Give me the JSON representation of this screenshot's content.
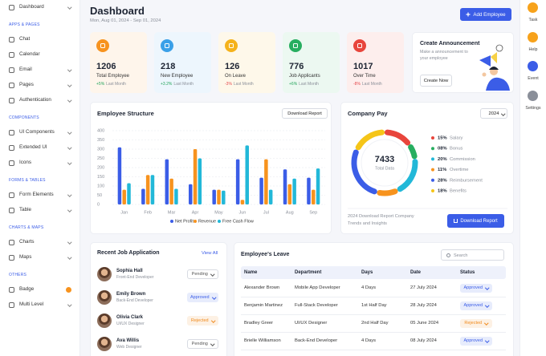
{
  "sidebar": {
    "sections": [
      {
        "items": [
          "Dashboard"
        ]
      },
      {
        "title": "APPS & PAGES",
        "items": [
          "Chat",
          "Calendar",
          "Email",
          "Pages",
          "Authentication"
        ]
      },
      {
        "title": "COMPONENTS",
        "items": [
          "UI Components",
          "Extended UI",
          "Icons"
        ]
      },
      {
        "title": "FORMS & TABLES",
        "items": [
          "Form Elements",
          "Table"
        ]
      },
      {
        "title": "CHARTS & MAPS",
        "items": [
          "Charts",
          "Maps"
        ]
      },
      {
        "title": "OTHERS",
        "items": [
          "Badge",
          "Multi Level"
        ]
      }
    ]
  },
  "header": {
    "title": "Dashboard",
    "date_range": "Mon, Aug 01, 2024 - Sep 01, 2024",
    "button": "Add Employee"
  },
  "right_rail": {
    "items": [
      "Task",
      "Help",
      "Event",
      "Settings"
    ]
  },
  "stats": [
    {
      "value": 1206,
      "label": "Total Employee",
      "change": "+5%",
      "period": "Last Month",
      "color": "#f7931e",
      "change_color": "#22a35a"
    },
    {
      "value": 218,
      "label": "New Employee",
      "change": "+3.2%",
      "period": "Last Month",
      "color": "#3aa0e8",
      "change_color": "#22a35a"
    },
    {
      "value": 126,
      "label": "On Leave",
      "change": "-3%",
      "period": "Last Month",
      "color": "#f5b21b",
      "change_color": "#e5484d"
    },
    {
      "value": 776,
      "label": "Job Applicants",
      "change": "+6%",
      "period": "Last Month",
      "color": "#27ae60",
      "change_color": "#22a35a"
    },
    {
      "value": 1017,
      "label": "Over Time",
      "change": "-8%",
      "period": "Last Month",
      "color": "#e8453c",
      "change_color": "#e5484d"
    }
  ],
  "announcement": {
    "title": "Create Announcement",
    "text": "Make a announcement to your employee",
    "button": "Create Now"
  },
  "employee_structure": {
    "type": "bar",
    "title": "Employee Structure",
    "button": "Download Report",
    "categories": [
      "Jan",
      "Feb",
      "Mar",
      "Apr",
      "May",
      "Jun",
      "Jul",
      "Aug",
      "Sep"
    ],
    "series": [
      {
        "name": "Net Profit",
        "color": "#3b5de7",
        "values": [
          310,
          85,
          245,
          110,
          80,
          245,
          145,
          190,
          145
        ]
      },
      {
        "name": "Revenue",
        "color": "#f7931e",
        "values": [
          80,
          160,
          140,
          300,
          80,
          25,
          245,
          110,
          80
        ]
      },
      {
        "name": "Free Cash Flow",
        "color": "#22b8d8",
        "values": [
          115,
          160,
          85,
          250,
          75,
          320,
          80,
          140,
          195
        ]
      }
    ],
    "ylim": [
      0,
      400
    ],
    "yticks": [
      0,
      50,
      100,
      150,
      200,
      250,
      300,
      350,
      400
    ],
    "grid": true
  },
  "company_pay": {
    "type": "pie",
    "title": "Company Pay",
    "year": "2024",
    "total": 7433,
    "total_label": "Total Data",
    "categories": [
      "Salary",
      "Bonus",
      "Commission",
      "Overtime",
      "Reimbursement",
      "Benefits"
    ],
    "values": [
      15,
      8,
      20,
      11,
      28,
      18
    ],
    "value_labels": [
      "15%",
      "08%",
      "20%",
      "11%",
      "28%",
      "18%"
    ],
    "colors": [
      "#e8453c",
      "#27ae60",
      "#22b8d8",
      "#f7931e",
      "#3b5de7",
      "#f5c518"
    ],
    "footer_text": "2024 Download Report Company Trends and Insights",
    "button": "Download Report"
  },
  "recent_jobs": {
    "title": "Recent Job Application",
    "link": "View All",
    "applicants": [
      {
        "name": "Sophia Hall",
        "role": "Front-End Developer",
        "status": "Pending",
        "status_color": "#555555"
      },
      {
        "name": "Emily Brown",
        "role": "Back-End Developer",
        "status": "Approved",
        "status_color": "#3b5de7"
      },
      {
        "name": "Olivia Clark",
        "role": "UI/UX Designer",
        "status": "Rejected",
        "status_color": "#f08a1c"
      },
      {
        "name": "Ava Willis",
        "role": "Web Designer",
        "status": "Pending",
        "status_color": "#555555"
      }
    ]
  },
  "employee_leave": {
    "title": "Employee's Leave",
    "search_placeholder": "Search",
    "columns": [
      "Name",
      "Department",
      "Days",
      "Date",
      "Status"
    ],
    "rows": [
      {
        "cells": [
          "Alexander Brown",
          "Mobile App Developer",
          "4 Days",
          "27 July 2024",
          "Approved"
        ],
        "status_color": "#3b5de7"
      },
      {
        "cells": [
          "Benjamin Martinez",
          "Full-Stack Developer",
          "1st Half Day",
          "28 July 2024",
          "Approved"
        ],
        "status_color": "#3b5de7"
      },
      {
        "cells": [
          "Bradley Greer",
          "UI/UX Designer",
          "2nd Half Day",
          "05 June 2024",
          "Rejected"
        ],
        "status_color": "#f08a1c"
      },
      {
        "cells": [
          "Brielle Williamson",
          "Back-End Developer",
          "4 Days",
          "08 July 2024",
          "Approved"
        ],
        "status_color": "#3b5de7"
      }
    ]
  }
}
